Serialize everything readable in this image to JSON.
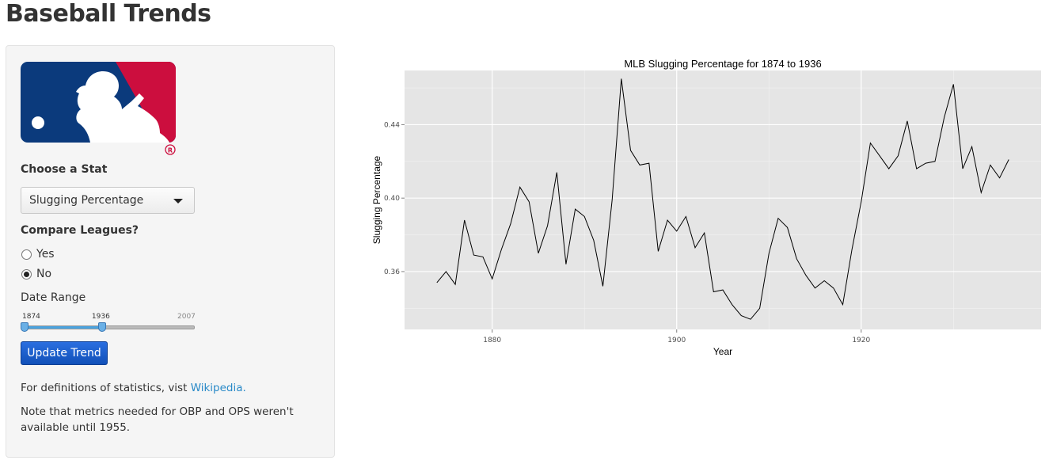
{
  "page": {
    "title": "Baseball Trends"
  },
  "sidebar": {
    "choose_stat_label": "Choose a Stat",
    "stat_selected": "Slugging Percentage",
    "compare_label": "Compare Leagues?",
    "radio_yes": "Yes",
    "radio_no": "No",
    "compare_selected": "No",
    "date_range_label": "Date Range",
    "slider_min": "1874",
    "slider_value": "1936",
    "slider_max": "2007",
    "slider_start_value": 1874,
    "slider_end_value": 1936,
    "slider_domain": [
      1874,
      2007
    ],
    "update_button": "Update Trend",
    "definitions_text": "For definitions of statistics, vist",
    "definitions_link": "Wikipedia.",
    "note_text": "Note that metrics needed for OBP and OPS weren't available until 1955.",
    "logo_colors": {
      "blue": "#0b3a7c",
      "red": "#cc0e3e"
    }
  },
  "chart_data": {
    "type": "line",
    "title": "MLB Slugging Percentage for 1874 to 1936",
    "xlabel": "Year",
    "ylabel": "Slugging Percentage",
    "xlim": [
      1870.5,
      1939.5
    ],
    "ylim": [
      0.3285,
      0.4695
    ],
    "x_ticks": [
      1880,
      1900,
      1920
    ],
    "y_ticks": [
      0.36,
      0.4,
      0.44
    ],
    "y_tick_labels": [
      "0.36",
      "0.40",
      "0.44"
    ],
    "grid": true,
    "legend": "none",
    "line_color": "#000000",
    "panel_color": "#e5e5e5",
    "x": [
      1874,
      1875,
      1876,
      1877,
      1878,
      1879,
      1880,
      1881,
      1882,
      1883,
      1884,
      1885,
      1886,
      1887,
      1888,
      1889,
      1890,
      1891,
      1892,
      1893,
      1894,
      1895,
      1896,
      1897,
      1898,
      1899,
      1900,
      1901,
      1902,
      1903,
      1904,
      1905,
      1906,
      1907,
      1908,
      1909,
      1910,
      1911,
      1912,
      1913,
      1914,
      1915,
      1916,
      1917,
      1918,
      1919,
      1920,
      1921,
      1922,
      1923,
      1924,
      1925,
      1926,
      1927,
      1928,
      1929,
      1930,
      1931,
      1932,
      1933,
      1934,
      1935,
      1936
    ],
    "y": [
      0.354,
      0.36,
      0.353,
      0.388,
      0.369,
      0.368,
      0.356,
      0.372,
      0.386,
      0.406,
      0.398,
      0.37,
      0.385,
      0.414,
      0.364,
      0.394,
      0.39,
      0.377,
      0.352,
      0.399,
      0.465,
      0.426,
      0.418,
      0.419,
      0.371,
      0.388,
      0.382,
      0.39,
      0.373,
      0.381,
      0.349,
      0.35,
      0.342,
      0.336,
      0.334,
      0.34,
      0.37,
      0.389,
      0.384,
      0.367,
      0.358,
      0.351,
      0.355,
      0.351,
      0.342,
      0.372,
      0.398,
      0.43,
      0.423,
      0.416,
      0.423,
      0.442,
      0.416,
      0.419,
      0.42,
      0.444,
      0.462,
      0.416,
      0.428,
      0.403,
      0.418,
      0.411,
      0.421
    ]
  }
}
